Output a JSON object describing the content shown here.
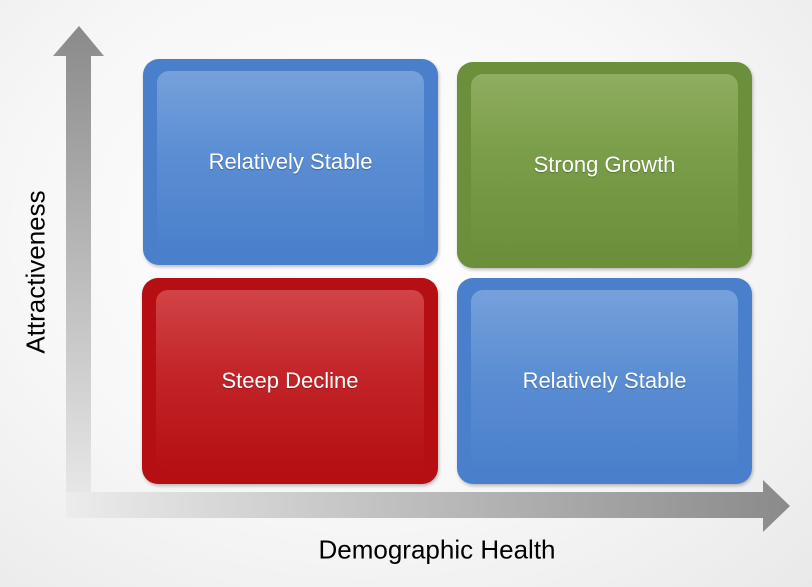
{
  "axes": {
    "y_label": "Attractiveness",
    "x_label": "Demographic Health"
  },
  "quadrants": {
    "top_left": {
      "label": "Relatively Stable",
      "color": "#4a7fcb"
    },
    "top_right": {
      "label": "Strong Growth",
      "color": "#6b8f3a"
    },
    "bottom_left": {
      "label": "Steep Decline",
      "color": "#b50f13"
    },
    "bottom_right": {
      "label": "Relatively Stable",
      "color": "#4a7fcb"
    }
  },
  "colors": {
    "axis_gray": "#8c8c8c",
    "background": "#f4f4f4"
  }
}
